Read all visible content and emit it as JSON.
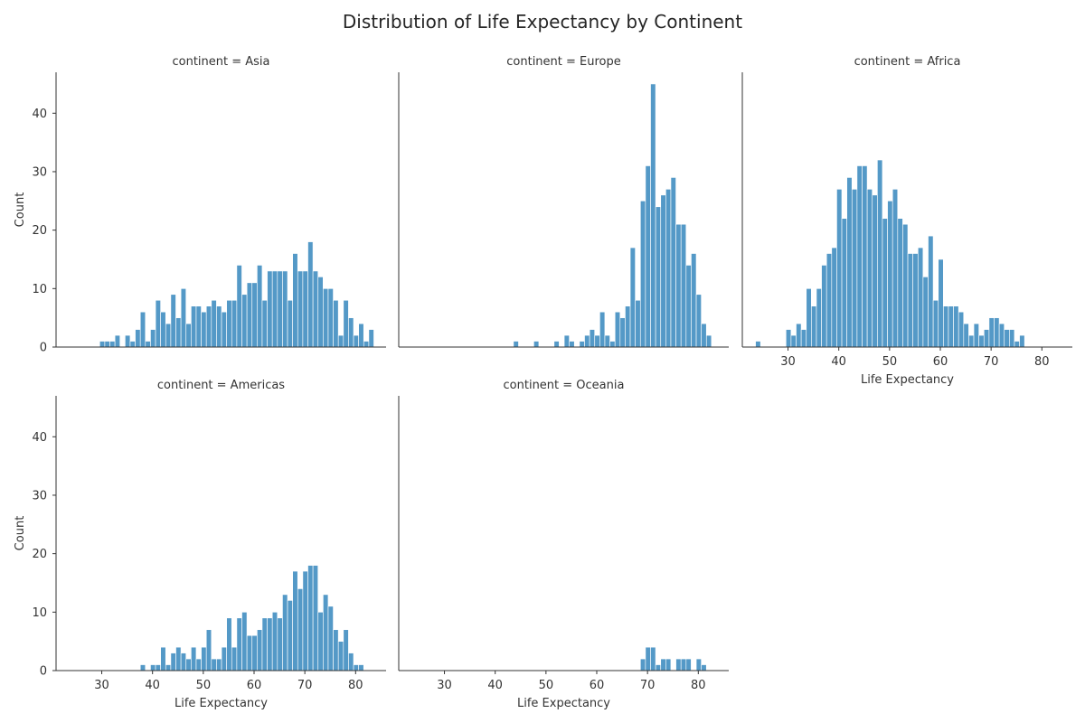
{
  "title": "Distribution of Life Expectancy by Continent",
  "colors": {
    "bar": "#5499c7",
    "bar_edge": "#ffffff",
    "text": "#333333"
  },
  "chart_data": {
    "type": "bar",
    "kind": "faceted-histogram",
    "title": "Distribution of Life Expectancy by Continent",
    "xlabel": "Life Expectancy",
    "ylabel": "Count",
    "xlim": [
      21,
      86
    ],
    "ylim": [
      0,
      47
    ],
    "xticks": [
      30,
      40,
      50,
      60,
      70,
      80
    ],
    "yticks": [
      0,
      10,
      20,
      30,
      40
    ],
    "grid": false,
    "bin_start": 23.6,
    "bin_width": 0.99,
    "facets": [
      {
        "title": "continent = Asia",
        "bins": [
          [
            29.6,
            1
          ],
          [
            30.6,
            1
          ],
          [
            31.6,
            1
          ],
          [
            32.6,
            2
          ],
          [
            34.6,
            2
          ],
          [
            35.6,
            1
          ],
          [
            36.6,
            3
          ],
          [
            37.6,
            6
          ],
          [
            38.6,
            1
          ],
          [
            39.6,
            3
          ],
          [
            40.6,
            8
          ],
          [
            41.6,
            6
          ],
          [
            42.6,
            4
          ],
          [
            43.6,
            9
          ],
          [
            44.6,
            5
          ],
          [
            45.6,
            10
          ],
          [
            46.6,
            4
          ],
          [
            47.6,
            7
          ],
          [
            48.6,
            7
          ],
          [
            49.6,
            6
          ],
          [
            50.6,
            7
          ],
          [
            51.6,
            8
          ],
          [
            52.6,
            7
          ],
          [
            53.6,
            6
          ],
          [
            54.6,
            8
          ],
          [
            55.6,
            8
          ],
          [
            56.6,
            14
          ],
          [
            57.6,
            9
          ],
          [
            58.6,
            11
          ],
          [
            59.6,
            11
          ],
          [
            60.6,
            14
          ],
          [
            61.6,
            8
          ],
          [
            62.6,
            13
          ],
          [
            63.6,
            13
          ],
          [
            64.6,
            13
          ],
          [
            65.6,
            13
          ],
          [
            66.6,
            8
          ],
          [
            67.6,
            16
          ],
          [
            68.6,
            13
          ],
          [
            69.6,
            13
          ],
          [
            70.6,
            18
          ],
          [
            71.6,
            13
          ],
          [
            72.6,
            12
          ],
          [
            73.6,
            10
          ],
          [
            74.6,
            10
          ],
          [
            75.6,
            8
          ],
          [
            76.6,
            2
          ],
          [
            77.6,
            8
          ],
          [
            78.6,
            5
          ],
          [
            79.6,
            2
          ],
          [
            80.6,
            4
          ],
          [
            81.6,
            1
          ],
          [
            82.6,
            3
          ]
        ]
      },
      {
        "title": "continent = Europe",
        "bins": [
          [
            43.6,
            1
          ],
          [
            47.6,
            1
          ],
          [
            51.6,
            1
          ],
          [
            53.6,
            2
          ],
          [
            54.6,
            1
          ],
          [
            56.6,
            1
          ],
          [
            57.6,
            2
          ],
          [
            58.6,
            3
          ],
          [
            59.6,
            2
          ],
          [
            60.6,
            6
          ],
          [
            61.6,
            2
          ],
          [
            62.6,
            1
          ],
          [
            63.6,
            6
          ],
          [
            64.6,
            5
          ],
          [
            65.6,
            7
          ],
          [
            66.6,
            17
          ],
          [
            67.6,
            8
          ],
          [
            68.6,
            25
          ],
          [
            69.6,
            31
          ],
          [
            70.6,
            45
          ],
          [
            71.6,
            24
          ],
          [
            72.6,
            26
          ],
          [
            73.6,
            27
          ],
          [
            74.6,
            29
          ],
          [
            75.6,
            21
          ],
          [
            76.6,
            21
          ],
          [
            77.6,
            14
          ],
          [
            78.6,
            16
          ],
          [
            79.6,
            9
          ],
          [
            80.6,
            4
          ],
          [
            81.6,
            2
          ]
        ]
      },
      {
        "title": "continent = Africa",
        "bins": [
          [
            23.6,
            1
          ],
          [
            29.6,
            3
          ],
          [
            30.6,
            2
          ],
          [
            31.6,
            4
          ],
          [
            32.6,
            3
          ],
          [
            33.6,
            10
          ],
          [
            34.6,
            7
          ],
          [
            35.6,
            10
          ],
          [
            36.6,
            14
          ],
          [
            37.6,
            16
          ],
          [
            38.6,
            17
          ],
          [
            39.6,
            27
          ],
          [
            40.6,
            22
          ],
          [
            41.6,
            29
          ],
          [
            42.6,
            27
          ],
          [
            43.6,
            31
          ],
          [
            44.6,
            31
          ],
          [
            45.6,
            27
          ],
          [
            46.6,
            26
          ],
          [
            47.6,
            32
          ],
          [
            48.6,
            22
          ],
          [
            49.6,
            25
          ],
          [
            50.6,
            27
          ],
          [
            51.6,
            22
          ],
          [
            52.6,
            21
          ],
          [
            53.6,
            16
          ],
          [
            54.6,
            16
          ],
          [
            55.6,
            17
          ],
          [
            56.6,
            12
          ],
          [
            57.6,
            19
          ],
          [
            58.6,
            8
          ],
          [
            59.6,
            15
          ],
          [
            60.6,
            7
          ],
          [
            61.6,
            7
          ],
          [
            62.6,
            7
          ],
          [
            63.6,
            6
          ],
          [
            64.6,
            4
          ],
          [
            65.6,
            2
          ],
          [
            66.6,
            4
          ],
          [
            67.6,
            2
          ],
          [
            68.6,
            3
          ],
          [
            69.6,
            5
          ],
          [
            70.6,
            5
          ],
          [
            71.6,
            4
          ],
          [
            72.6,
            3
          ],
          [
            73.6,
            3
          ],
          [
            74.6,
            1
          ],
          [
            75.6,
            2
          ]
        ]
      },
      {
        "title": "continent = Americas",
        "bins": [
          [
            37.6,
            1
          ],
          [
            39.6,
            1
          ],
          [
            40.6,
            1
          ],
          [
            41.6,
            4
          ],
          [
            42.6,
            1
          ],
          [
            43.6,
            3
          ],
          [
            44.6,
            4
          ],
          [
            45.6,
            3
          ],
          [
            46.6,
            2
          ],
          [
            47.6,
            4
          ],
          [
            48.6,
            2
          ],
          [
            49.6,
            4
          ],
          [
            50.6,
            7
          ],
          [
            51.6,
            2
          ],
          [
            52.6,
            2
          ],
          [
            53.6,
            4
          ],
          [
            54.6,
            9
          ],
          [
            55.6,
            4
          ],
          [
            56.6,
            9
          ],
          [
            57.6,
            10
          ],
          [
            58.6,
            6
          ],
          [
            59.6,
            6
          ],
          [
            60.6,
            7
          ],
          [
            61.6,
            9
          ],
          [
            62.6,
            9
          ],
          [
            63.6,
            10
          ],
          [
            64.6,
            9
          ],
          [
            65.6,
            13
          ],
          [
            66.6,
            12
          ],
          [
            67.6,
            17
          ],
          [
            68.6,
            14
          ],
          [
            69.6,
            17
          ],
          [
            70.6,
            18
          ],
          [
            71.6,
            18
          ],
          [
            72.6,
            10
          ],
          [
            73.6,
            13
          ],
          [
            74.6,
            11
          ],
          [
            75.6,
            7
          ],
          [
            76.6,
            5
          ],
          [
            77.6,
            7
          ],
          [
            78.6,
            3
          ],
          [
            79.6,
            1
          ],
          [
            80.6,
            1
          ]
        ]
      },
      {
        "title": "continent = Oceania",
        "bins": [
          [
            68.6,
            2
          ],
          [
            69.6,
            4
          ],
          [
            70.6,
            4
          ],
          [
            71.6,
            1
          ],
          [
            72.6,
            2
          ],
          [
            73.6,
            2
          ],
          [
            75.6,
            2
          ],
          [
            76.6,
            2
          ],
          [
            77.6,
            2
          ],
          [
            79.6,
            2
          ],
          [
            80.6,
            1
          ]
        ]
      }
    ]
  }
}
